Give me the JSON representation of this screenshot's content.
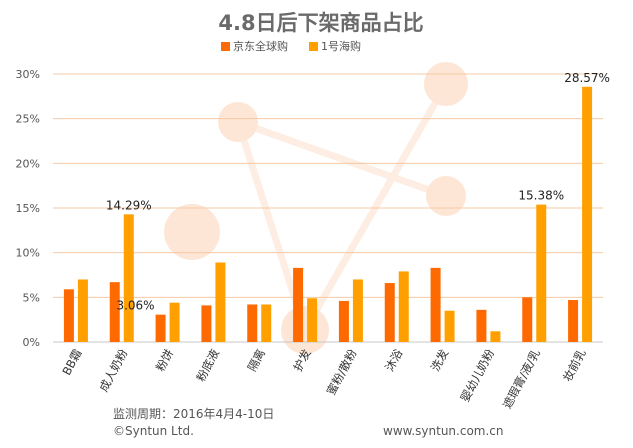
{
  "chart_data": {
    "type": "bar",
    "title": "4.8日后下架商品占比",
    "categories": [
      "BB霜",
      "成人奶粉",
      "粉饼",
      "粉底液",
      "隔离",
      "护发",
      "蜜粉/散粉",
      "沐浴",
      "洗发",
      "婴幼儿奶粉",
      "遮瑕膏/液/乳",
      "妆前乳"
    ],
    "series": [
      {
        "name": "京东全球购",
        "color": "#ff6a00",
        "values": [
          5.9,
          6.7,
          3.06,
          4.1,
          4.2,
          8.3,
          4.6,
          6.6,
          8.3,
          3.6,
          5.0,
          4.7
        ]
      },
      {
        "name": "1号海购",
        "color": "#ffa000",
        "values": [
          7.0,
          14.29,
          4.4,
          8.9,
          4.2,
          4.9,
          7.0,
          7.9,
          3.5,
          1.2,
          15.38,
          28.57
        ]
      }
    ],
    "ylim": [
      0,
      30
    ],
    "yticks": [
      "0%",
      "5%",
      "10%",
      "15%",
      "20%",
      "25%",
      "30%"
    ],
    "grid": true,
    "legend": "top-center",
    "data_labels": [
      {
        "series": 1,
        "index": 1,
        "text": "14.29%"
      },
      {
        "series": 0,
        "index": 2,
        "text": "3.06%"
      },
      {
        "series": 1,
        "index": 10,
        "text": "15.38%"
      },
      {
        "series": 1,
        "index": 11,
        "text": "28.57%"
      }
    ]
  },
  "footer": {
    "period": "监测周期：2016年4月4-10日",
    "copyright": "©Syntun Ltd.",
    "website": "www.syntun.com.cn"
  }
}
